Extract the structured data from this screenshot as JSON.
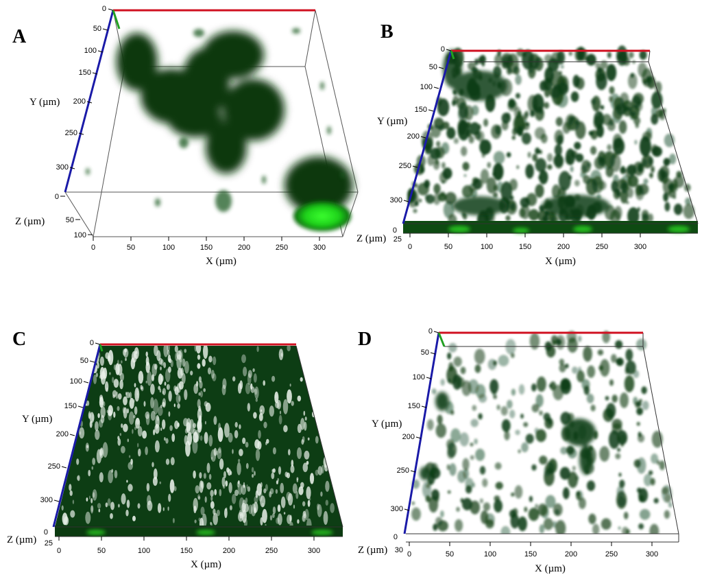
{
  "colors": {
    "x_axis": "#d01020",
    "y_axis": "#1a1aa8",
    "z_axis": "#22a022",
    "biofilm_dark": "#0d3d14",
    "biofilm_bright": "#22e81e",
    "frame": "#555555"
  },
  "panels": [
    {
      "letter": "A",
      "x_label": "X (µm)",
      "y_label": "Y (µm)",
      "z_label": "Z (µm)",
      "x_ticks": [
        "0",
        "50",
        "100",
        "150",
        "200",
        "250",
        "300"
      ],
      "y_ticks": [
        "0",
        "50",
        "100",
        "150",
        "200",
        "250",
        "300"
      ],
      "z_ticks": [
        "0",
        "50",
        "100"
      ]
    },
    {
      "letter": "B",
      "x_label": "X (µm)",
      "y_label": "Y (µm)",
      "z_label": "Z (µm)",
      "x_ticks": [
        "0",
        "50",
        "100",
        "150",
        "200",
        "250",
        "300"
      ],
      "y_ticks": [
        "0",
        "50",
        "100",
        "150",
        "200",
        "250",
        "300"
      ],
      "z_ticks": [
        "0",
        "25"
      ]
    },
    {
      "letter": "C",
      "x_label": "X (µm)",
      "y_label": "Y (µm)",
      "z_label": "Z (µm)",
      "x_ticks": [
        "0",
        "50",
        "100",
        "150",
        "200",
        "250",
        "300"
      ],
      "y_ticks": [
        "0",
        "50",
        "100",
        "150",
        "200",
        "250",
        "300"
      ],
      "z_ticks": [
        "0",
        "25"
      ]
    },
    {
      "letter": "D",
      "x_label": "X (µm)",
      "y_label": "Y (µm)",
      "z_label": "Z (µm)",
      "x_ticks": [
        "0",
        "50",
        "100",
        "150",
        "200",
        "250",
        "300"
      ],
      "y_ticks": [
        "0",
        "50",
        "100",
        "150",
        "200",
        "250",
        "300"
      ],
      "z_ticks": [
        "0",
        "30"
      ]
    }
  ]
}
